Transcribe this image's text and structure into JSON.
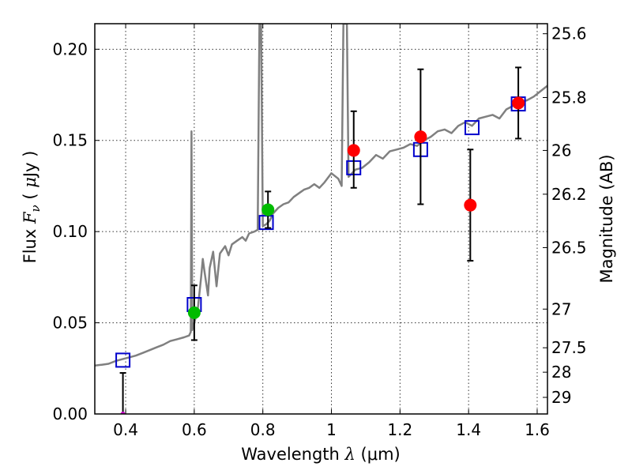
{
  "chart_data": {
    "type": "scatter",
    "xlabel_text": "Wavelength",
    "xlabel_symbol": "λ",
    "xlabel_unit": "(μm)",
    "ylabel_text": "Flux",
    "ylabel_symbol": "F",
    "ylabel_subscript": "ν",
    "ylabel_unit_open": "(",
    "ylabel_unit_mu": "μ",
    "ylabel_unit": "Jy",
    "ylabel_unit_close": ")",
    "y2label": "Magnitude (AB)",
    "xlim": [
      0.31,
      1.63
    ],
    "ylim": [
      0.0,
      0.214
    ],
    "x_ticks": [
      0.4,
      0.6,
      0.8,
      1.0,
      1.2,
      1.4,
      1.6
    ],
    "x_tick_labels": [
      "0.4",
      "0.6",
      "0.8",
      "1",
      "1.2",
      "1.4",
      "1.6"
    ],
    "y_ticks": [
      0.0,
      0.05,
      0.1,
      0.15,
      0.2
    ],
    "y_tick_labels": [
      "0.00",
      "0.05",
      "0.10",
      "0.15",
      "0.20"
    ],
    "y2_ticks": [
      {
        "label": "25.6",
        "flux": 0.2085
      },
      {
        "label": "25.8",
        "flux": 0.1735
      },
      {
        "label": "26",
        "flux": 0.1445
      },
      {
        "label": "26.2",
        "flux": 0.1205
      },
      {
        "label": "26.5",
        "flux": 0.0912
      },
      {
        "label": "27",
        "flux": 0.0575
      },
      {
        "label": "27.5",
        "flux": 0.0363
      },
      {
        "label": "28",
        "flux": 0.0229
      },
      {
        "label": "29",
        "flux": 0.0091
      }
    ],
    "grid": true,
    "colors": {
      "spectrum": "#808080",
      "model_box": "#0000cc",
      "green": "#00bb00",
      "red": "#ff0000",
      "errorbar": "#000000"
    },
    "spectrum": [
      [
        0.31,
        0.0265
      ],
      [
        0.33,
        0.027
      ],
      [
        0.35,
        0.0275
      ],
      [
        0.37,
        0.029
      ],
      [
        0.39,
        0.03
      ],
      [
        0.41,
        0.031
      ],
      [
        0.43,
        0.032
      ],
      [
        0.45,
        0.0335
      ],
      [
        0.47,
        0.035
      ],
      [
        0.49,
        0.0365
      ],
      [
        0.51,
        0.038
      ],
      [
        0.53,
        0.04
      ],
      [
        0.55,
        0.041
      ],
      [
        0.57,
        0.042
      ],
      [
        0.585,
        0.043
      ],
      [
        0.59,
        0.045
      ],
      [
        0.592,
        0.155
      ],
      [
        0.594,
        0.046
      ],
      [
        0.6,
        0.05
      ],
      [
        0.61,
        0.057
      ],
      [
        0.62,
        0.075
      ],
      [
        0.625,
        0.085
      ],
      [
        0.63,
        0.078
      ],
      [
        0.64,
        0.065
      ],
      [
        0.645,
        0.08
      ],
      [
        0.655,
        0.089
      ],
      [
        0.665,
        0.07
      ],
      [
        0.675,
        0.088
      ],
      [
        0.69,
        0.092
      ],
      [
        0.7,
        0.087
      ],
      [
        0.71,
        0.093
      ],
      [
        0.725,
        0.095
      ],
      [
        0.74,
        0.097
      ],
      [
        0.75,
        0.095
      ],
      [
        0.76,
        0.099
      ],
      [
        0.775,
        0.1
      ],
      [
        0.785,
        0.101
      ],
      [
        0.79,
        0.214
      ],
      [
        0.795,
        0.214
      ],
      [
        0.8,
        0.103
      ],
      [
        0.81,
        0.104
      ],
      [
        0.82,
        0.106
      ],
      [
        0.83,
        0.11
      ],
      [
        0.845,
        0.113
      ],
      [
        0.86,
        0.115
      ],
      [
        0.875,
        0.116
      ],
      [
        0.89,
        0.119
      ],
      [
        0.905,
        0.121
      ],
      [
        0.92,
        0.123
      ],
      [
        0.935,
        0.124
      ],
      [
        0.95,
        0.126
      ],
      [
        0.965,
        0.124
      ],
      [
        0.98,
        0.127
      ],
      [
        1.0,
        0.132
      ],
      [
        1.02,
        0.129
      ],
      [
        1.03,
        0.125
      ],
      [
        1.035,
        0.214
      ],
      [
        1.045,
        0.214
      ],
      [
        1.05,
        0.13
      ],
      [
        1.07,
        0.134
      ],
      [
        1.09,
        0.135
      ],
      [
        1.11,
        0.138
      ],
      [
        1.13,
        0.142
      ],
      [
        1.15,
        0.14
      ],
      [
        1.17,
        0.144
      ],
      [
        1.19,
        0.145
      ],
      [
        1.21,
        0.146
      ],
      [
        1.23,
        0.148
      ],
      [
        1.25,
        0.147
      ],
      [
        1.27,
        0.15
      ],
      [
        1.29,
        0.152
      ],
      [
        1.31,
        0.155
      ],
      [
        1.33,
        0.156
      ],
      [
        1.35,
        0.154
      ],
      [
        1.37,
        0.158
      ],
      [
        1.39,
        0.16
      ],
      [
        1.41,
        0.158
      ],
      [
        1.43,
        0.162
      ],
      [
        1.45,
        0.163
      ],
      [
        1.47,
        0.164
      ],
      [
        1.49,
        0.162
      ],
      [
        1.51,
        0.167
      ],
      [
        1.53,
        0.169
      ],
      [
        1.55,
        0.171
      ],
      [
        1.57,
        0.172
      ],
      [
        1.59,
        0.174
      ],
      [
        1.61,
        0.177
      ],
      [
        1.63,
        0.18
      ]
    ],
    "model_boxes": [
      {
        "x": 0.392,
        "y": 0.0295
      },
      {
        "x": 0.6,
        "y": 0.06
      },
      {
        "x": 0.81,
        "y": 0.105
      },
      {
        "x": 1.065,
        "y": 0.135
      },
      {
        "x": 1.26,
        "y": 0.145
      },
      {
        "x": 1.41,
        "y": 0.157
      },
      {
        "x": 1.545,
        "y": 0.17
      }
    ],
    "observations": [
      {
        "x": 0.392,
        "y": 0.0,
        "yerr_low": 0.0,
        "yerr_high": 0.0225,
        "color": "magenta"
      },
      {
        "x": 0.6,
        "y": 0.0555,
        "yerr_low": 0.0405,
        "yerr_high": 0.0705,
        "color": "green"
      },
      {
        "x": 0.815,
        "y": 0.112,
        "yerr_low": 0.102,
        "yerr_high": 0.122,
        "color": "green"
      },
      {
        "x": 1.065,
        "y": 0.1445,
        "yerr_low": 0.124,
        "yerr_high": 0.166,
        "color": "red"
      },
      {
        "x": 1.26,
        "y": 0.152,
        "yerr_low": 0.115,
        "yerr_high": 0.189,
        "color": "red"
      },
      {
        "x": 1.405,
        "y": 0.1145,
        "yerr_low": 0.084,
        "yerr_high": 0.145,
        "color": "red"
      },
      {
        "x": 1.545,
        "y": 0.1705,
        "yerr_low": 0.151,
        "yerr_high": 0.19,
        "color": "red"
      }
    ]
  }
}
